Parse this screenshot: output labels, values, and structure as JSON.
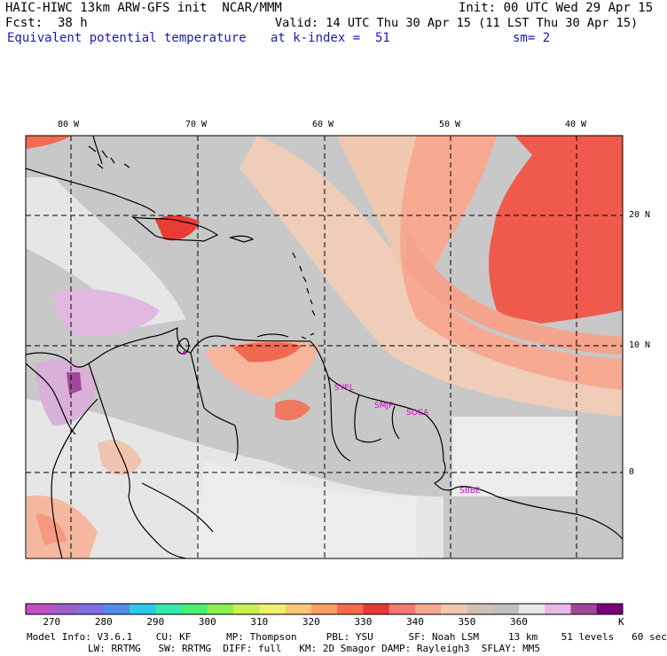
{
  "header": {
    "title": "HAIC-HIWC 13km ARW-GFS init  NCAR/MMM",
    "init": "Init: 00 UTC Wed 29 Apr 15",
    "fcst": "Fcst:  38 h",
    "valid": "Valid: 14 UTC Thu 30 Apr 15 (11 LST Thu 30 Apr 15)",
    "field": "Equivalent potential temperature",
    "level": "at k-index =  51",
    "smooth": "sm= 2"
  },
  "map": {
    "lon_labels": [
      "80 W",
      "70 W",
      "60 W",
      "50 W",
      "40 W"
    ],
    "lat_labels": [
      "20 N",
      "10 N",
      "0"
    ],
    "stations": [
      "SYEL",
      "SMJP",
      "SOCA",
      "SBBE"
    ]
  },
  "colorbar": {
    "colors": [
      "#c04fc8",
      "#a05ec8",
      "#7f6ee8",
      "#4f8ff0",
      "#30c8e8",
      "#34e8b0",
      "#48f070",
      "#8cf050",
      "#c8f050",
      "#f0f070",
      "#f8c878",
      "#f8a060",
      "#f86a48",
      "#e83838",
      "#f87870",
      "#f8a890",
      "#f0c8b0",
      "#d0c0b8",
      "#c0c0c0",
      "#e8e8e8",
      "#e8b8e8",
      "#a04898",
      "#780078"
    ],
    "labels": [
      "270",
      "280",
      "290",
      "300",
      "310",
      "320",
      "330",
      "340",
      "350",
      "360"
    ],
    "unit": "K"
  },
  "footer": {
    "line1": "Model Info: V3.6.1    CU: KF      MP: Thompson     PBL: YSU      SF: Noah LSM     13 km    51 levels   60 sec",
    "line2": "LW: RRTMG   SW: RRTMG  DIFF: full   KM: 2D Smagor DAMP: Rayleigh3  SFLAY: MM5"
  }
}
